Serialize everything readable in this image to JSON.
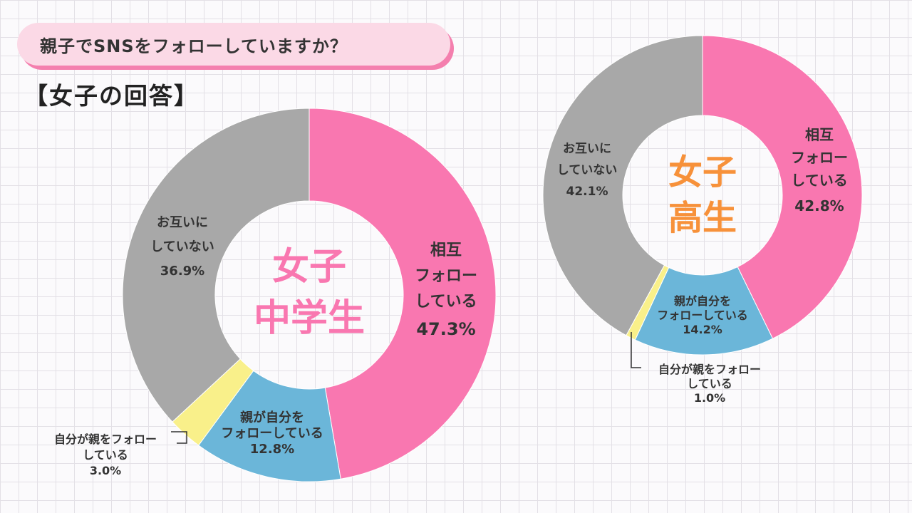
{
  "header": {
    "question": "親子でSNSをフォローしていますか？",
    "subtitle": "【女子の回答】"
  },
  "colors": {
    "mutual": "#f977b0",
    "parent_follows": "#6bb6d9",
    "self_follows": "#f9f08a",
    "none": "#a8a8a8",
    "middle_center": "#f977b0",
    "high_center": "#f7913a"
  },
  "chart_data": [
    {
      "type": "pie",
      "center_label": [
        "女子",
        "中学生"
      ],
      "categories": [
        "相互フォローしている",
        "親が自分をフォローしている",
        "自分が親をフォローしている",
        "お互いにしていない"
      ],
      "values": [
        47.3,
        12.8,
        3.0,
        36.9
      ],
      "labels": [
        {
          "lines": [
            "相互",
            "フォロー",
            "している"
          ],
          "value": "47.3%"
        },
        {
          "lines": [
            "親が自分を",
            "フォローしている"
          ],
          "value": "12.8%"
        },
        {
          "lines": [
            "自分が親をフォロー",
            "している"
          ],
          "value": "3.0%"
        },
        {
          "lines": [
            "お互いに",
            "していない"
          ],
          "value": "36.9%"
        }
      ]
    },
    {
      "type": "pie",
      "center_label": [
        "女子",
        "高生"
      ],
      "categories": [
        "相互フォローしている",
        "親が自分をフォローしている",
        "自分が親をフォローしている",
        "お互いにしていない"
      ],
      "values": [
        42.8,
        14.2,
        1.0,
        42.1
      ],
      "labels": [
        {
          "lines": [
            "相互",
            "フォロー",
            "している"
          ],
          "value": "42.8%"
        },
        {
          "lines": [
            "親が自分を",
            "フォローしている"
          ],
          "value": "14.2%"
        },
        {
          "lines": [
            "自分が親をフォロー",
            "している"
          ],
          "value": "1.0%"
        },
        {
          "lines": [
            "お互いに",
            "していない"
          ],
          "value": "42.1%"
        }
      ]
    }
  ]
}
